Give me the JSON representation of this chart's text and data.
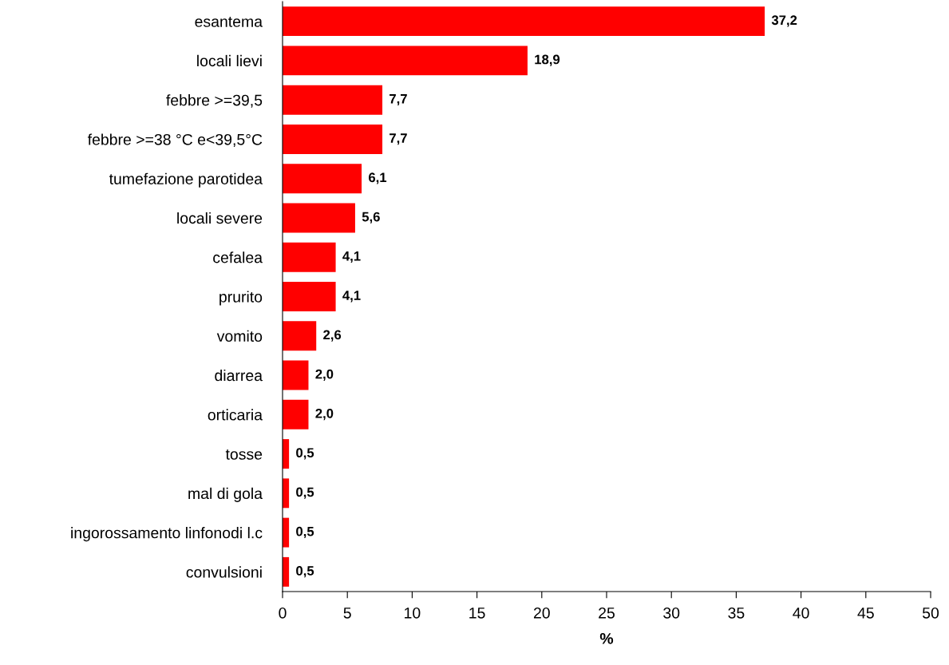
{
  "chart_data": {
    "type": "bar",
    "orientation": "horizontal",
    "xlabel": "%",
    "categories": [
      "esantema",
      "locali lievi",
      "febbre >=39,5",
      "febbre >=38 °C e<39,5°C",
      "tumefazione parotidea",
      "locali severe",
      "cefalea",
      "prurito",
      "vomito",
      "diarrea",
      "orticaria",
      "tosse",
      "mal di gola",
      "ingorossamento linfonodi l.c",
      "convulsioni"
    ],
    "values": [
      37.2,
      18.9,
      7.7,
      7.7,
      6.1,
      5.6,
      4.1,
      4.1,
      2.6,
      2.0,
      2.0,
      0.5,
      0.5,
      0.5,
      0.5
    ],
    "value_labels": [
      "37,2",
      "18,9",
      "7,7",
      "7,7",
      "6,1",
      "5,6",
      "4,1",
      "4,1",
      "2,6",
      "2,0",
      "2,0",
      "0,5",
      "0,5",
      "0,5",
      "0,5"
    ],
    "color": "#ff0000",
    "xlim": [
      0,
      50
    ],
    "xticks": [
      0,
      5,
      10,
      15,
      20,
      25,
      30,
      35,
      40,
      45,
      50
    ],
    "grid": false,
    "legend": false
  }
}
